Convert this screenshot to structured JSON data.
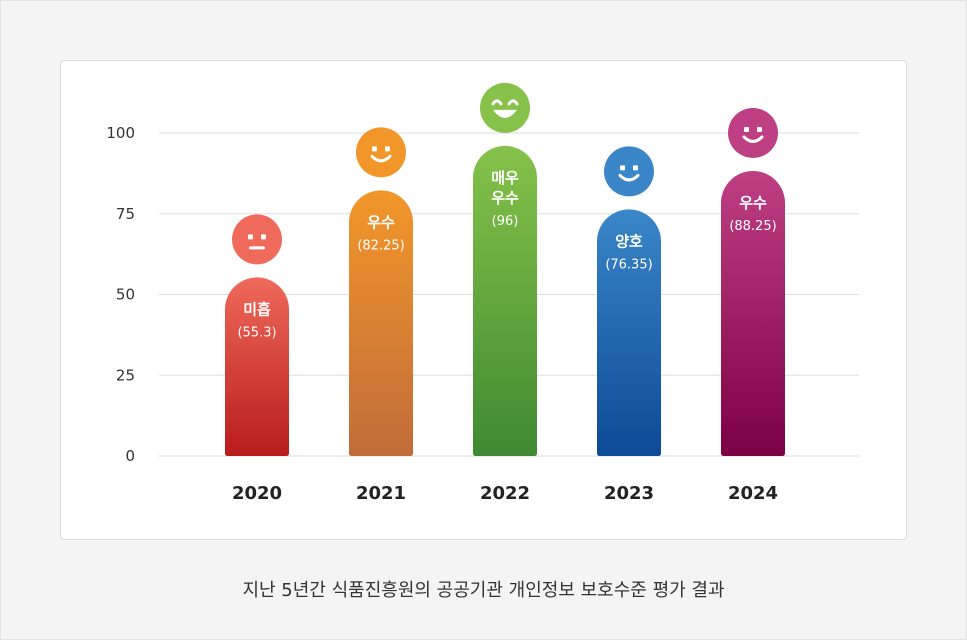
{
  "caption": "지난 5년간 식품진흥원의 공공기관 개인정보 보호수준 평가 결과",
  "chart_data": {
    "type": "bar",
    "categories": [
      "2020",
      "2021",
      "2022",
      "2023",
      "2024"
    ],
    "values": [
      55.3,
      82.25,
      96,
      76.35,
      88.25
    ],
    "value_labels": [
      "(55.3)",
      "(82.25)",
      "(96)",
      "(76.35)",
      "(88.25)"
    ],
    "grades": [
      [
        "미흡"
      ],
      [
        "우수"
      ],
      [
        "매우",
        "우수"
      ],
      [
        "양호"
      ],
      [
        "우수"
      ]
    ],
    "faces": [
      "neutral-face-icon",
      "smile-face-icon",
      "grin-face-icon",
      "smile-face-icon",
      "smile-face-icon"
    ],
    "colors": [
      [
        "#ef6a5a",
        "#b81c1c"
      ],
      [
        "#f2962a",
        "#c26c3a"
      ],
      [
        "#86c24a",
        "#3f8a31"
      ],
      [
        "#3a86c8",
        "#0d4a97"
      ],
      [
        "#bf3f84",
        "#7c0046"
      ]
    ],
    "y_ticks": [
      "0",
      "25",
      "50",
      "75",
      "100"
    ],
    "ylim": [
      0,
      100
    ],
    "grid": true
  }
}
